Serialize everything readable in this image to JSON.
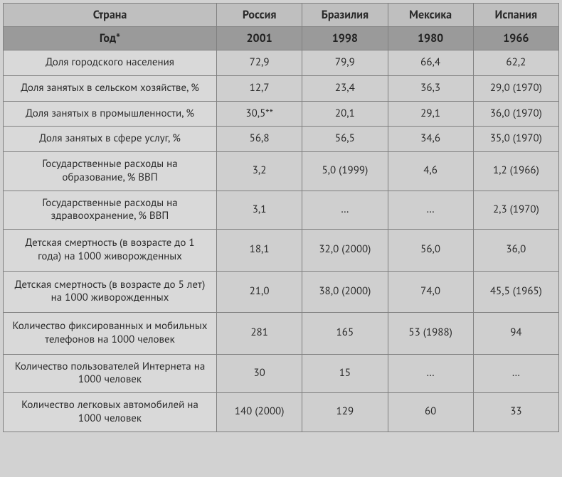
{
  "type": "table",
  "background_color": "#d2d2d2",
  "border_color": "#808080",
  "header_bg": "#bfbfbf",
  "year_row_bg": "#9a9a9a",
  "label_bg": "#d9d9d9",
  "value_bg": "#cfcfcf",
  "text_color": "#2a2a2a",
  "header_fontsize": 16,
  "body_fontsize": 15,
  "columns": [
    "Страна",
    "Россия",
    "Бразилия",
    "Мексика",
    "Испания"
  ],
  "year_row": {
    "label": "Год*",
    "values": [
      "2001",
      "1998",
      "1980",
      "1966"
    ]
  },
  "rows": [
    {
      "label": "Доля городского населения",
      "values": [
        "72,9",
        "79,9",
        "66,4",
        "62,2"
      ]
    },
    {
      "label": "Доля занятых в сельском хозяйстве, %",
      "values": [
        "12,7",
        "23,4",
        "36,3",
        "29,0 (1970)"
      ]
    },
    {
      "label": "Доля занятых в промышленности, %",
      "values": [
        "30,5**",
        "20,1",
        "29,1",
        "36,0 (1970)"
      ]
    },
    {
      "label": "Доля занятых в сфере услуг, %",
      "values": [
        "56,8",
        "56,5",
        "34,6",
        "35,0 (1970)"
      ]
    },
    {
      "label": "Государственные расходы на образование, % ВВП",
      "values": [
        "3,2",
        "5,0 (1999)",
        "4,6",
        "1,2 (1966)"
      ]
    },
    {
      "label": "Государственные расходы на здравоохранение, % ВВП",
      "values": [
        "3,1",
        "…",
        "…",
        "2,3 (1970)"
      ]
    },
    {
      "label": "Детская смертность (в возрасте до 1 года) на 1000 живорожденных",
      "values": [
        "18,1",
        "32,0 (2000)",
        "56,0",
        "36,0"
      ],
      "tall": true
    },
    {
      "label": "Детская смертность (в возрасте до 5 лет) на 1000 живорожденных",
      "values": [
        "21,0",
        "38,0 (2000)",
        "74,0",
        "45,5 (1965)"
      ],
      "tall": true
    },
    {
      "label": "Количество фиксированных и мобильных телефонов на 1000 человек",
      "values": [
        "281",
        "165",
        "53 (1988)",
        "94"
      ],
      "tall": true
    },
    {
      "label": "Количество пользователей Интернета на 1000 человек",
      "values": [
        "30",
        "15",
        "…",
        "…"
      ]
    },
    {
      "label": "Количество легковых автомобилей на 1000 человек",
      "values": [
        "140 (2000)",
        "129",
        "60",
        "33"
      ]
    }
  ]
}
